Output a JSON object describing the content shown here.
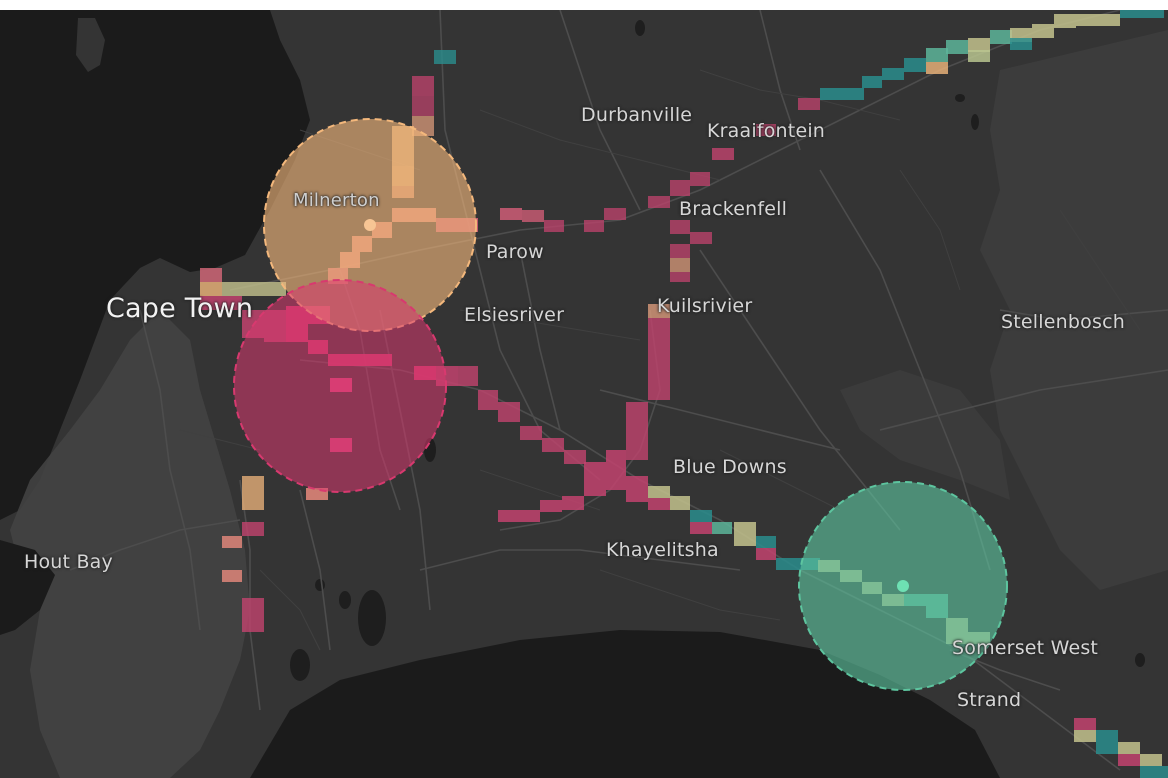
{
  "map": {
    "colors": {
      "land": "#343434",
      "water": "#1b1b1b",
      "hills": "#444444",
      "roads": "#4a4a4a",
      "cluster_orange": "#f4b87c",
      "cluster_pink": "#d8396f",
      "cluster_green": "#5dc59f",
      "cell_teal": "#1f8c8c"
    },
    "labels": {
      "cape_town": "Cape Town",
      "milnerton": "Milnerton",
      "durbanville": "Durbanville",
      "kraaifontein": "Kraaifontein",
      "brackenfell": "Brackenfell",
      "parow": "Parow",
      "elsiesriver": "Elsiesriver",
      "kuilsrivier": "Kuilsrivier",
      "stellenbosch": "Stellenbosch",
      "blue_downs": "Blue Downs",
      "khayelitsha": "Khayelitsha",
      "hout_bay": "Hout Bay",
      "somerset_west": "Somerset West",
      "strand": "Strand"
    },
    "clusters": [
      {
        "name": "orange",
        "color": "#f4b87c"
      },
      {
        "name": "pink",
        "color": "#d8396f"
      },
      {
        "name": "green",
        "color": "#5dc59f"
      }
    ]
  }
}
